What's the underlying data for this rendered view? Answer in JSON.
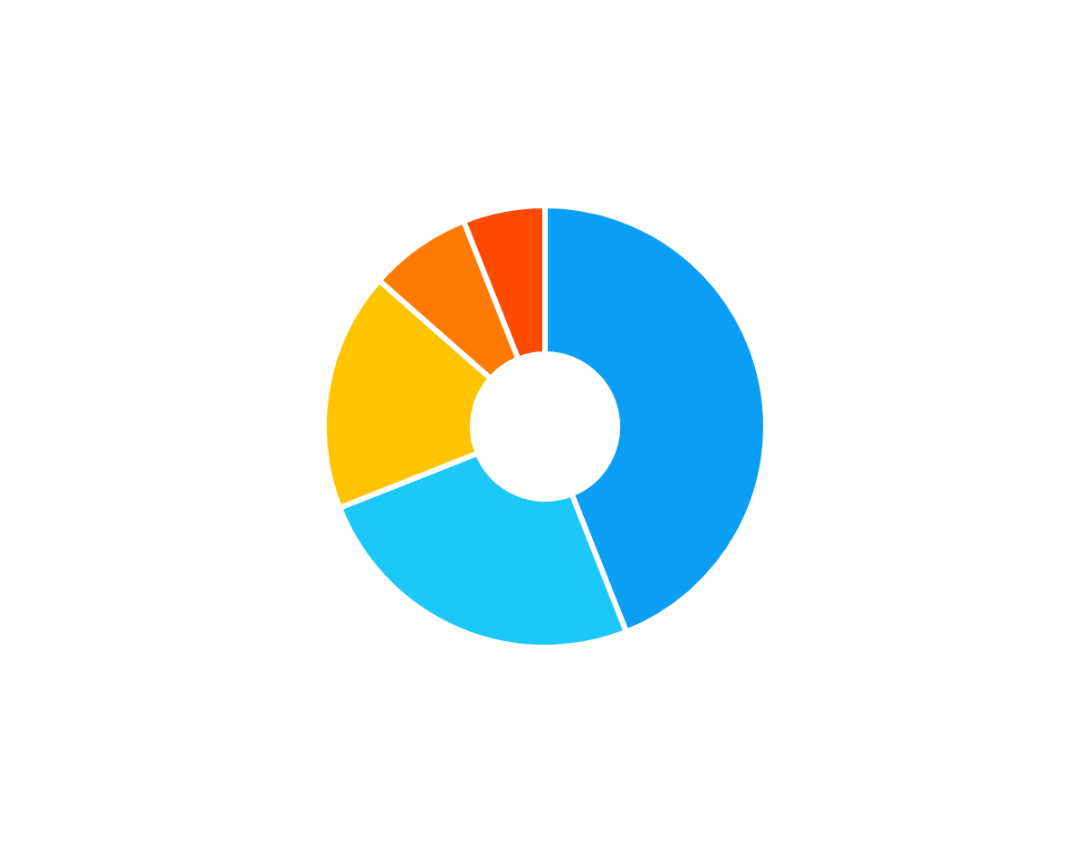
{
  "chart_data": {
    "type": "donut",
    "categories": [
      null,
      null,
      null,
      null,
      null
    ],
    "values": [
      44,
      25,
      17.5,
      7.5,
      6
    ],
    "colors": [
      "#0a9ff5",
      "#1cc8f7",
      "#ffc400",
      "#ff7a00",
      "#ff4a00"
    ]
  }
}
